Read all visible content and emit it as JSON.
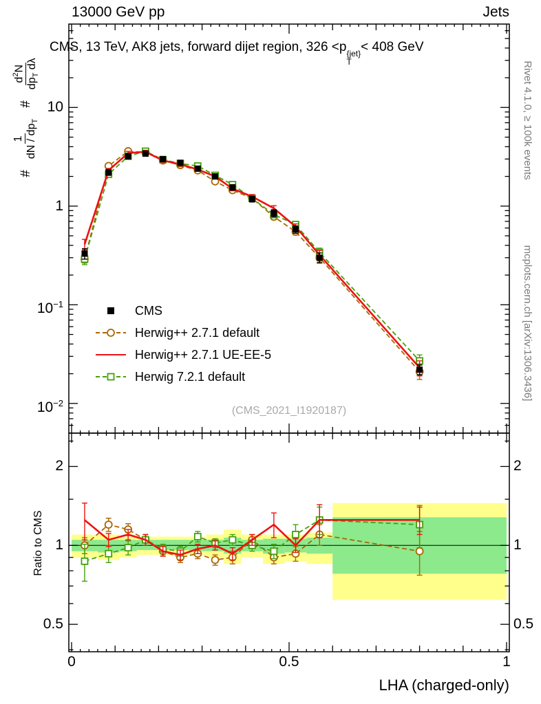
{
  "header": {
    "left": "13000 GeV pp",
    "right": "Jets"
  },
  "title": {
    "pre": "CMS, 13 TeV, AK8 jets, forward dijet region, 326 <p",
    "sup": "{jet}",
    "sub": "T",
    "post": "< 408 GeV"
  },
  "watermark": "(CMS_2021_I1920187)",
  "side_notes": {
    "top_right": "Rivet 4.1.0, ≥ 100k events",
    "bottom_right": "mcplots.cern.ch [arXiv:1306.3436]"
  },
  "ylabel_main": {
    "hash1": "#",
    "frac1_num": "1",
    "frac1_den_a": "dN / dp",
    "frac1_den_sub": "T",
    "hash2": "#",
    "frac2_num_a": "d",
    "frac2_num_sup": "2",
    "frac2_num_b": "N",
    "frac2_den_a": "dp",
    "frac2_den_sub": "T",
    "frac2_den_b": " dλ"
  },
  "ylabel_ratio": "Ratio to CMS",
  "xlabel": "LHA (charged-only)",
  "colors": {
    "band_yellow": "#ffff8c",
    "band_green": "#8ce98c",
    "side_text": "#7a7a7a",
    "watermark": "#aaaaaa",
    "cms": "#000000",
    "herwigpp_default": "#aa6600",
    "herwigpp_ueee5": "#ee1111",
    "herwig7_default": "#44a00b"
  },
  "axes": {
    "xticks": [
      {
        "x": 0,
        "label": "0"
      },
      {
        "x": 0.5,
        "label": "0.5"
      },
      {
        "x": 1,
        "label": "1"
      }
    ],
    "main_yticks": [
      {
        "v": 0.01,
        "base": "10",
        "exp": "−2"
      },
      {
        "v": 0.1,
        "base": "10",
        "exp": "−1"
      },
      {
        "v": 1,
        "label": "1"
      },
      {
        "v": 10,
        "label": "10"
      }
    ],
    "ratio_yticks": [
      {
        "v": 0.5,
        "label": "0.5"
      },
      {
        "v": 1,
        "label": "1"
      },
      {
        "v": 2,
        "label": "2"
      }
    ]
  },
  "chart_data": {
    "type": "line",
    "title": "CMS, 13 TeV, AK8 jets, forward dijet region, 326 <p_T^{jet}< 408 GeV",
    "xlabel": "LHA (charged-only)",
    "ylabel": "# 1/(dN/dp_T) # d²N/(dp_T dλ)",
    "ratio_ylabel": "Ratio to CMS",
    "yscale": "log",
    "xlim": [
      0,
      1
    ],
    "ylim_main": [
      0.005,
      70
    ],
    "ylim_ratio": [
      0.393,
      2.68
    ],
    "bin_edges": [
      0,
      0.06,
      0.11,
      0.15,
      0.19,
      0.23,
      0.27,
      0.31,
      0.35,
      0.39,
      0.44,
      0.49,
      0.54,
      0.6,
      1.0
    ],
    "x": [
      0.03,
      0.085,
      0.13,
      0.17,
      0.21,
      0.25,
      0.29,
      0.33,
      0.37,
      0.415,
      0.465,
      0.515,
      0.57,
      0.8
    ],
    "series": [
      {
        "name": "CMS",
        "color": "#000000",
        "marker": "square-filled",
        "line": "none",
        "width": 0,
        "values": [
          0.33,
          2.2,
          3.2,
          3.4,
          3.0,
          2.75,
          2.4,
          2.0,
          1.55,
          1.18,
          0.85,
          0.58,
          0.3,
          0.022
        ],
        "errors": [
          0.04,
          0.15,
          0.2,
          0.2,
          0.18,
          0.16,
          0.14,
          0.12,
          0.1,
          0.08,
          0.07,
          0.05,
          0.035,
          0.0025
        ]
      },
      {
        "name": "Herwig++ 2.7.1 default",
        "color": "#aa6600",
        "marker": "circle-open",
        "line": "dashed",
        "width": 1.8,
        "values": [
          0.29,
          2.55,
          3.6,
          3.5,
          2.9,
          2.6,
          2.3,
          1.78,
          1.45,
          1.2,
          0.78,
          0.55,
          0.3,
          0.021
        ],
        "errors": [
          0.025,
          0.12,
          0.15,
          0.14,
          0.12,
          0.11,
          0.1,
          0.08,
          0.07,
          0.06,
          0.05,
          0.04,
          0.03,
          0.0035
        ],
        "ratio": [
          1.0,
          1.2,
          1.15,
          1.05,
          0.95,
          0.9,
          0.93,
          0.88,
          0.9,
          1.05,
          0.9,
          0.93,
          1.1,
          0.95
        ],
        "ratio_errors": [
          0.07,
          0.07,
          0.06,
          0.05,
          0.04,
          0.04,
          0.04,
          0.04,
          0.05,
          0.05,
          0.05,
          0.06,
          0.1,
          0.18
        ]
      },
      {
        "name": "Herwig++ 2.7.1 UE-EE-5",
        "color": "#ee1111",
        "marker": "none",
        "line": "solid",
        "width": 2.6,
        "values": [
          0.41,
          2.3,
          3.45,
          3.55,
          2.9,
          2.65,
          2.35,
          2.0,
          1.5,
          1.25,
          0.95,
          0.62,
          0.32,
          0.023
        ],
        "errors": [
          0.05,
          0.11,
          0.14,
          0.13,
          0.12,
          0.11,
          0.1,
          0.08,
          0.07,
          0.06,
          0.06,
          0.04,
          0.035,
          0.004
        ],
        "ratio": [
          1.25,
          1.05,
          1.1,
          1.05,
          0.95,
          0.92,
          0.97,
          1.0,
          0.93,
          1.05,
          1.2,
          1.0,
          1.25,
          1.25
        ],
        "ratio_errors": [
          0.2,
          0.06,
          0.05,
          0.05,
          0.04,
          0.04,
          0.04,
          0.04,
          0.05,
          0.05,
          0.13,
          0.06,
          0.18,
          0.15
        ]
      },
      {
        "name": "Herwig 7.2.1 default",
        "color": "#44a00b",
        "marker": "square-open",
        "line": "dashed",
        "width": 1.8,
        "values": [
          0.29,
          2.1,
          3.2,
          3.6,
          2.95,
          2.7,
          2.55,
          2.05,
          1.65,
          1.2,
          0.82,
          0.65,
          0.34,
          0.027
        ],
        "errors": [
          0.035,
          0.11,
          0.13,
          0.13,
          0.11,
          0.1,
          0.1,
          0.08,
          0.07,
          0.06,
          0.05,
          0.045,
          0.035,
          0.004
        ],
        "ratio": [
          0.87,
          0.93,
          0.98,
          1.05,
          0.97,
          0.95,
          1.08,
          1.02,
          1.05,
          1.0,
          0.95,
          1.1,
          1.25,
          1.2
        ],
        "ratio_errors": [
          0.14,
          0.07,
          0.06,
          0.05,
          0.04,
          0.04,
          0.05,
          0.04,
          0.05,
          0.05,
          0.06,
          0.1,
          0.15,
          0.22
        ]
      }
    ],
    "ratio_bands": {
      "yellow": [
        [
          0.9,
          1.1
        ],
        [
          0.88,
          1.1
        ],
        [
          0.9,
          1.08
        ],
        [
          0.92,
          1.08
        ],
        [
          0.92,
          1.08
        ],
        [
          0.92,
          1.08
        ],
        [
          0.92,
          1.08
        ],
        [
          0.9,
          1.1
        ],
        [
          0.85,
          1.15
        ],
        [
          0.9,
          1.1
        ],
        [
          0.85,
          1.1
        ],
        [
          0.87,
          1.1
        ],
        [
          0.85,
          1.12
        ],
        [
          0.62,
          1.45
        ]
      ],
      "green": [
        [
          0.95,
          1.05
        ],
        [
          0.94,
          1.05
        ],
        [
          0.95,
          1.05
        ],
        [
          0.96,
          1.05
        ],
        [
          0.96,
          1.05
        ],
        [
          0.96,
          1.05
        ],
        [
          0.95,
          1.05
        ],
        [
          0.95,
          1.05
        ],
        [
          0.93,
          1.07
        ],
        [
          0.95,
          1.05
        ],
        [
          0.93,
          1.06
        ],
        [
          0.94,
          1.06
        ],
        [
          0.93,
          1.07
        ],
        [
          0.78,
          1.28
        ]
      ]
    }
  }
}
